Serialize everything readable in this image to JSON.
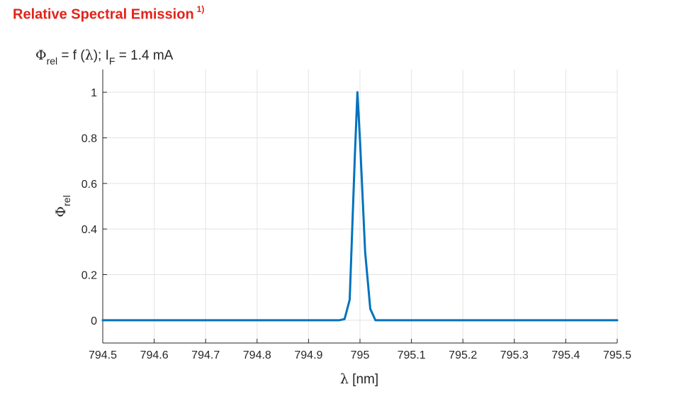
{
  "heading": {
    "text": "Relative Spectral Emission",
    "note": "1)"
  },
  "chart_data": {
    "type": "line",
    "title_parts": {
      "phi": "Φ",
      "phi_sub": "rel",
      "eq": " = f (",
      "lambda": "λ",
      "close": "); I",
      "i_sub": "F",
      "rest": " = 1.4 mA"
    },
    "xlabel_parts": {
      "lambda": "λ",
      "unit": " [nm]"
    },
    "ylabel_parts": {
      "phi": "Φ",
      "sub": "rel"
    },
    "xlim": [
      794.5,
      795.5
    ],
    "ylim": [
      -0.1,
      1.1
    ],
    "grid": true,
    "x_ticks": [
      "794.5",
      "794.6",
      "794.7",
      "794.8",
      "794.9",
      "795",
      "795.1",
      "795.2",
      "795.3",
      "795.4",
      "795.5"
    ],
    "y_ticks": [
      "0",
      "0.2",
      "0.4",
      "0.6",
      "0.8",
      "1"
    ],
    "series": [
      {
        "color": "#0072bd",
        "x": [
          794.5,
          794.96,
          794.97,
          794.98,
          794.99,
          794.995,
          795.0,
          795.01,
          795.02,
          795.03,
          795.5
        ],
        "y": [
          0,
          0,
          0.005,
          0.09,
          0.72,
          1.0,
          0.79,
          0.3,
          0.05,
          0.0,
          0
        ]
      }
    ]
  }
}
